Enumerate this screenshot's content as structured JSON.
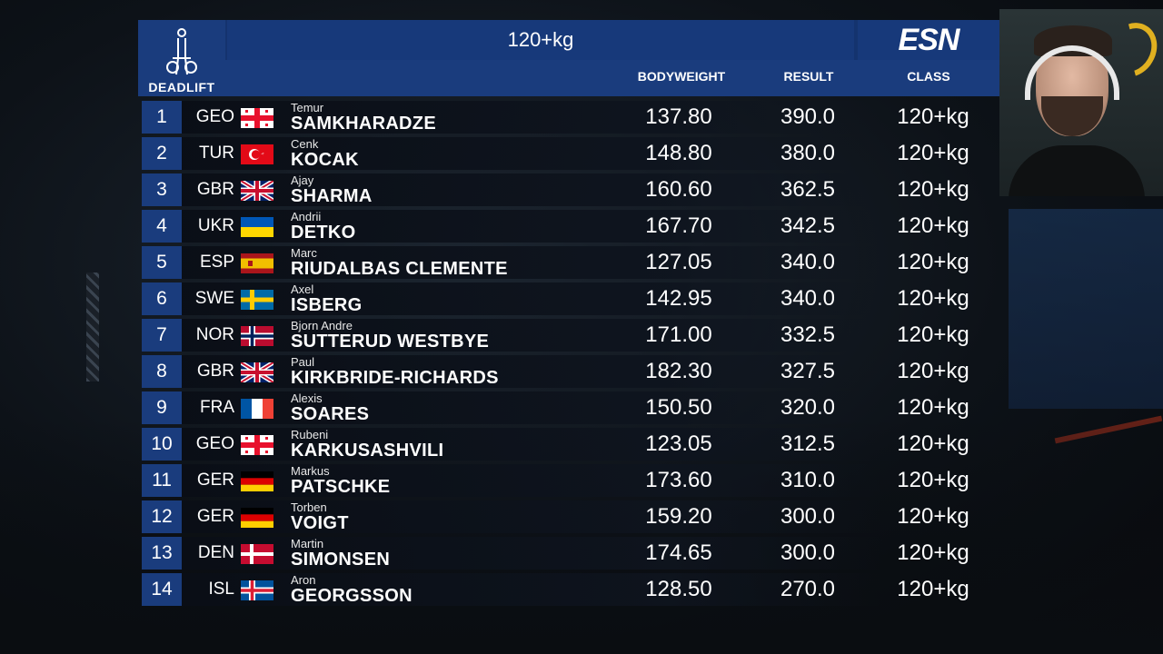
{
  "header": {
    "title": "120+kg",
    "lift_label": "DEADLIFT",
    "broadcaster_logo": "ESN",
    "columns": {
      "bodyweight": "BODYWEIGHT",
      "result": "RESULT",
      "class": "CLASS"
    }
  },
  "colors": {
    "header_blue": "#17397a",
    "rank_blue": "#1a3c7d",
    "row_dark": "#0e141e"
  },
  "rows": [
    {
      "rank": "1",
      "nation": "GEO",
      "flag": "georgia",
      "first": "Temur",
      "last": "SAMKHARADZE",
      "bodyweight": "137.80",
      "result": "390.0",
      "class": "120+kg"
    },
    {
      "rank": "2",
      "nation": "TUR",
      "flag": "turkey",
      "first": "Cenk",
      "last": "KOCAK",
      "bodyweight": "148.80",
      "result": "380.0",
      "class": "120+kg"
    },
    {
      "rank": "3",
      "nation": "GBR",
      "flag": "uk",
      "first": "Ajay",
      "last": "SHARMA",
      "bodyweight": "160.60",
      "result": "362.5",
      "class": "120+kg"
    },
    {
      "rank": "4",
      "nation": "UKR",
      "flag": "ukraine",
      "first": "Andrii",
      "last": "DETKO",
      "bodyweight": "167.70",
      "result": "342.5",
      "class": "120+kg"
    },
    {
      "rank": "5",
      "nation": "ESP",
      "flag": "spain",
      "first": "Marc",
      "last": "RIUDALBAS CLEMENTE",
      "bodyweight": "127.05",
      "result": "340.0",
      "class": "120+kg"
    },
    {
      "rank": "6",
      "nation": "SWE",
      "flag": "sweden",
      "first": "Axel",
      "last": "ISBERG",
      "bodyweight": "142.95",
      "result": "340.0",
      "class": "120+kg"
    },
    {
      "rank": "7",
      "nation": "NOR",
      "flag": "norway",
      "first": "Bjorn Andre",
      "last": "SUTTERUD WESTBYE",
      "bodyweight": "171.00",
      "result": "332.5",
      "class": "120+kg"
    },
    {
      "rank": "8",
      "nation": "GBR",
      "flag": "uk",
      "first": "Paul",
      "last": "KIRKBRIDE-RICHARDS",
      "bodyweight": "182.30",
      "result": "327.5",
      "class": "120+kg"
    },
    {
      "rank": "9",
      "nation": "FRA",
      "flag": "france",
      "first": "Alexis",
      "last": "SOARES",
      "bodyweight": "150.50",
      "result": "320.0",
      "class": "120+kg"
    },
    {
      "rank": "10",
      "nation": "GEO",
      "flag": "georgia",
      "first": "Rubeni",
      "last": "KARKUSASHVILI",
      "bodyweight": "123.05",
      "result": "312.5",
      "class": "120+kg"
    },
    {
      "rank": "11",
      "nation": "GER",
      "flag": "germany",
      "first": "Markus",
      "last": "PATSCHKE",
      "bodyweight": "173.60",
      "result": "310.0",
      "class": "120+kg"
    },
    {
      "rank": "12",
      "nation": "GER",
      "flag": "germany",
      "first": "Torben",
      "last": "VOIGT",
      "bodyweight": "159.20",
      "result": "300.0",
      "class": "120+kg"
    },
    {
      "rank": "13",
      "nation": "DEN",
      "flag": "denmark",
      "first": "Martin",
      "last": "SIMONSEN",
      "bodyweight": "174.65",
      "result": "300.0",
      "class": "120+kg"
    },
    {
      "rank": "14",
      "nation": "ISL",
      "flag": "iceland",
      "first": "Aron",
      "last": "GEORGSSON",
      "bodyweight": "128.50",
      "result": "270.0",
      "class": "120+kg"
    }
  ]
}
